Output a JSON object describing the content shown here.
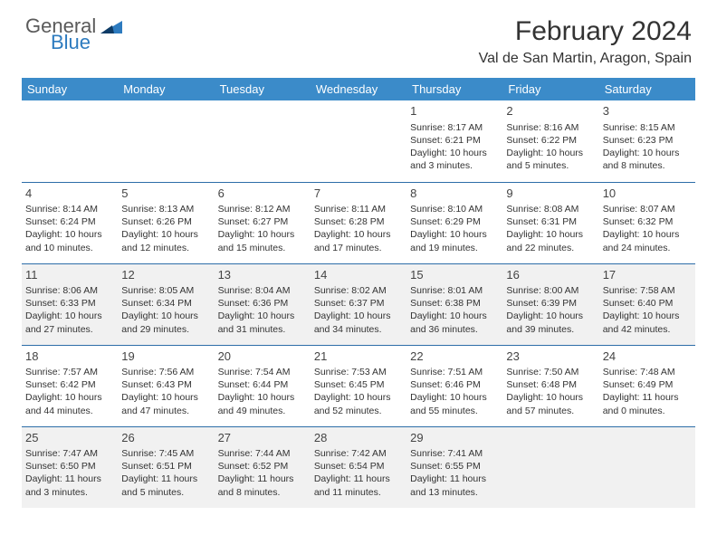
{
  "logo": {
    "general": "General",
    "blue": "Blue"
  },
  "header": {
    "month_title": "February 2024",
    "location": "Val de San Martin, Aragon, Spain"
  },
  "colors": {
    "header_bg": "#3b8bc9",
    "header_text": "#ffffff",
    "row_border": "#2d6ea8",
    "shade_bg": "#f1f1f1",
    "body_text": "#333333",
    "logo_gray": "#5a5a5a",
    "logo_blue": "#2d7bbf"
  },
  "day_headers": [
    "Sunday",
    "Monday",
    "Tuesday",
    "Wednesday",
    "Thursday",
    "Friday",
    "Saturday"
  ],
  "weeks": [
    [
      {
        "blank": true
      },
      {
        "blank": true
      },
      {
        "blank": true
      },
      {
        "blank": true
      },
      {
        "day": "1",
        "sunrise": "Sunrise: 8:17 AM",
        "sunset": "Sunset: 6:21 PM",
        "daylight1": "Daylight: 10 hours",
        "daylight2": "and 3 minutes."
      },
      {
        "day": "2",
        "sunrise": "Sunrise: 8:16 AM",
        "sunset": "Sunset: 6:22 PM",
        "daylight1": "Daylight: 10 hours",
        "daylight2": "and 5 minutes."
      },
      {
        "day": "3",
        "sunrise": "Sunrise: 8:15 AM",
        "sunset": "Sunset: 6:23 PM",
        "daylight1": "Daylight: 10 hours",
        "daylight2": "and 8 minutes."
      }
    ],
    [
      {
        "day": "4",
        "sunrise": "Sunrise: 8:14 AM",
        "sunset": "Sunset: 6:24 PM",
        "daylight1": "Daylight: 10 hours",
        "daylight2": "and 10 minutes."
      },
      {
        "day": "5",
        "sunrise": "Sunrise: 8:13 AM",
        "sunset": "Sunset: 6:26 PM",
        "daylight1": "Daylight: 10 hours",
        "daylight2": "and 12 minutes."
      },
      {
        "day": "6",
        "sunrise": "Sunrise: 8:12 AM",
        "sunset": "Sunset: 6:27 PM",
        "daylight1": "Daylight: 10 hours",
        "daylight2": "and 15 minutes."
      },
      {
        "day": "7",
        "sunrise": "Sunrise: 8:11 AM",
        "sunset": "Sunset: 6:28 PM",
        "daylight1": "Daylight: 10 hours",
        "daylight2": "and 17 minutes."
      },
      {
        "day": "8",
        "sunrise": "Sunrise: 8:10 AM",
        "sunset": "Sunset: 6:29 PM",
        "daylight1": "Daylight: 10 hours",
        "daylight2": "and 19 minutes."
      },
      {
        "day": "9",
        "sunrise": "Sunrise: 8:08 AM",
        "sunset": "Sunset: 6:31 PM",
        "daylight1": "Daylight: 10 hours",
        "daylight2": "and 22 minutes."
      },
      {
        "day": "10",
        "sunrise": "Sunrise: 8:07 AM",
        "sunset": "Sunset: 6:32 PM",
        "daylight1": "Daylight: 10 hours",
        "daylight2": "and 24 minutes."
      }
    ],
    [
      {
        "day": "11",
        "sunrise": "Sunrise: 8:06 AM",
        "sunset": "Sunset: 6:33 PM",
        "daylight1": "Daylight: 10 hours",
        "daylight2": "and 27 minutes.",
        "shade": true
      },
      {
        "day": "12",
        "sunrise": "Sunrise: 8:05 AM",
        "sunset": "Sunset: 6:34 PM",
        "daylight1": "Daylight: 10 hours",
        "daylight2": "and 29 minutes.",
        "shade": true
      },
      {
        "day": "13",
        "sunrise": "Sunrise: 8:04 AM",
        "sunset": "Sunset: 6:36 PM",
        "daylight1": "Daylight: 10 hours",
        "daylight2": "and 31 minutes.",
        "shade": true
      },
      {
        "day": "14",
        "sunrise": "Sunrise: 8:02 AM",
        "sunset": "Sunset: 6:37 PM",
        "daylight1": "Daylight: 10 hours",
        "daylight2": "and 34 minutes.",
        "shade": true
      },
      {
        "day": "15",
        "sunrise": "Sunrise: 8:01 AM",
        "sunset": "Sunset: 6:38 PM",
        "daylight1": "Daylight: 10 hours",
        "daylight2": "and 36 minutes.",
        "shade": true
      },
      {
        "day": "16",
        "sunrise": "Sunrise: 8:00 AM",
        "sunset": "Sunset: 6:39 PM",
        "daylight1": "Daylight: 10 hours",
        "daylight2": "and 39 minutes.",
        "shade": true
      },
      {
        "day": "17",
        "sunrise": "Sunrise: 7:58 AM",
        "sunset": "Sunset: 6:40 PM",
        "daylight1": "Daylight: 10 hours",
        "daylight2": "and 42 minutes.",
        "shade": true
      }
    ],
    [
      {
        "day": "18",
        "sunrise": "Sunrise: 7:57 AM",
        "sunset": "Sunset: 6:42 PM",
        "daylight1": "Daylight: 10 hours",
        "daylight2": "and 44 minutes."
      },
      {
        "day": "19",
        "sunrise": "Sunrise: 7:56 AM",
        "sunset": "Sunset: 6:43 PM",
        "daylight1": "Daylight: 10 hours",
        "daylight2": "and 47 minutes."
      },
      {
        "day": "20",
        "sunrise": "Sunrise: 7:54 AM",
        "sunset": "Sunset: 6:44 PM",
        "daylight1": "Daylight: 10 hours",
        "daylight2": "and 49 minutes."
      },
      {
        "day": "21",
        "sunrise": "Sunrise: 7:53 AM",
        "sunset": "Sunset: 6:45 PM",
        "daylight1": "Daylight: 10 hours",
        "daylight2": "and 52 minutes."
      },
      {
        "day": "22",
        "sunrise": "Sunrise: 7:51 AM",
        "sunset": "Sunset: 6:46 PM",
        "daylight1": "Daylight: 10 hours",
        "daylight2": "and 55 minutes."
      },
      {
        "day": "23",
        "sunrise": "Sunrise: 7:50 AM",
        "sunset": "Sunset: 6:48 PM",
        "daylight1": "Daylight: 10 hours",
        "daylight2": "and 57 minutes."
      },
      {
        "day": "24",
        "sunrise": "Sunrise: 7:48 AM",
        "sunset": "Sunset: 6:49 PM",
        "daylight1": "Daylight: 11 hours",
        "daylight2": "and 0 minutes."
      }
    ],
    [
      {
        "day": "25",
        "sunrise": "Sunrise: 7:47 AM",
        "sunset": "Sunset: 6:50 PM",
        "daylight1": "Daylight: 11 hours",
        "daylight2": "and 3 minutes.",
        "shade": true
      },
      {
        "day": "26",
        "sunrise": "Sunrise: 7:45 AM",
        "sunset": "Sunset: 6:51 PM",
        "daylight1": "Daylight: 11 hours",
        "daylight2": "and 5 minutes.",
        "shade": true
      },
      {
        "day": "27",
        "sunrise": "Sunrise: 7:44 AM",
        "sunset": "Sunset: 6:52 PM",
        "daylight1": "Daylight: 11 hours",
        "daylight2": "and 8 minutes.",
        "shade": true
      },
      {
        "day": "28",
        "sunrise": "Sunrise: 7:42 AM",
        "sunset": "Sunset: 6:54 PM",
        "daylight1": "Daylight: 11 hours",
        "daylight2": "and 11 minutes.",
        "shade": true
      },
      {
        "day": "29",
        "sunrise": "Sunrise: 7:41 AM",
        "sunset": "Sunset: 6:55 PM",
        "daylight1": "Daylight: 11 hours",
        "daylight2": "and 13 minutes.",
        "shade": true
      },
      {
        "blank": true,
        "shade": true
      },
      {
        "blank": true,
        "shade": true
      }
    ]
  ]
}
